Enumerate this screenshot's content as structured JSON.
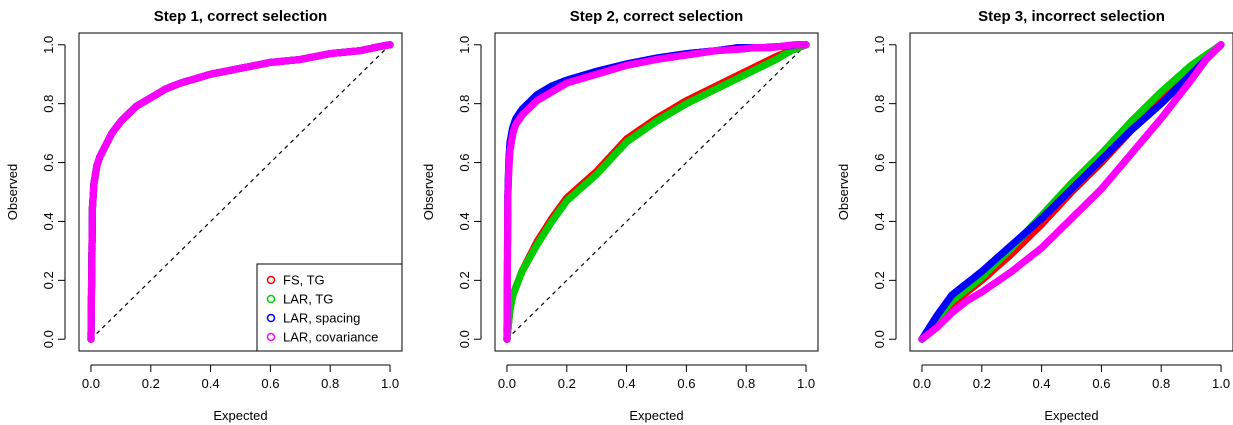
{
  "chart_data": [
    {
      "type": "scatter",
      "title": "Step 1, correct selection",
      "xlabel": "Expected",
      "ylabel": "Observed",
      "xlim": [
        0,
        1
      ],
      "ylim": [
        0,
        1
      ],
      "xticks": [
        "0.0",
        "0.2",
        "0.4",
        "0.6",
        "0.8",
        "1.0"
      ],
      "yticks": [
        "0.0",
        "0.2",
        "0.4",
        "0.6",
        "0.8",
        "1.0"
      ],
      "reference_line": "y = x (dashed)",
      "legend": {
        "position": "bottom-right",
        "entries": [
          {
            "label": "FS, TG",
            "color": "#ff0000"
          },
          {
            "label": "LAR, TG",
            "color": "#00cd00"
          },
          {
            "label": "LAR, spacing",
            "color": "#0000ff"
          },
          {
            "label": "LAR, covariance",
            "color": "#ff00ff"
          }
        ]
      },
      "series": [
        {
          "name": "FS, TG",
          "color": "#ff0000",
          "x": [
            0,
            0.005,
            0.01,
            0.02,
            0.03,
            0.05,
            0.07,
            0.1,
            0.15,
            0.2,
            0.25,
            0.3,
            0.4,
            0.5,
            0.6,
            0.7,
            0.8,
            0.9,
            0.97,
            1.0
          ],
          "y": [
            0,
            0.45,
            0.53,
            0.59,
            0.62,
            0.66,
            0.7,
            0.74,
            0.79,
            0.82,
            0.85,
            0.87,
            0.9,
            0.92,
            0.94,
            0.95,
            0.97,
            0.98,
            0.995,
            1.0
          ]
        },
        {
          "name": "LAR, TG",
          "color": "#00cd00",
          "x": [
            0,
            0.005,
            0.01,
            0.02,
            0.03,
            0.05,
            0.07,
            0.1,
            0.15,
            0.2,
            0.25,
            0.3,
            0.4,
            0.5,
            0.6,
            0.7,
            0.8,
            0.9,
            0.97,
            1.0
          ],
          "y": [
            0,
            0.45,
            0.53,
            0.59,
            0.62,
            0.66,
            0.7,
            0.74,
            0.79,
            0.82,
            0.85,
            0.87,
            0.9,
            0.92,
            0.94,
            0.95,
            0.97,
            0.98,
            0.995,
            1.0
          ]
        },
        {
          "name": "LAR, spacing",
          "color": "#0000ff",
          "x": [
            0,
            0.005,
            0.01,
            0.02,
            0.03,
            0.05,
            0.07,
            0.1,
            0.15,
            0.2,
            0.25,
            0.3,
            0.4,
            0.5,
            0.6,
            0.7,
            0.8,
            0.9,
            0.97,
            1.0
          ],
          "y": [
            0,
            0.45,
            0.53,
            0.59,
            0.62,
            0.66,
            0.7,
            0.74,
            0.79,
            0.82,
            0.85,
            0.87,
            0.9,
            0.92,
            0.94,
            0.95,
            0.97,
            0.98,
            0.995,
            1.0
          ]
        },
        {
          "name": "LAR, covariance",
          "color": "#ff00ff",
          "x": [
            0,
            0.005,
            0.01,
            0.02,
            0.03,
            0.05,
            0.07,
            0.1,
            0.15,
            0.2,
            0.25,
            0.3,
            0.4,
            0.5,
            0.6,
            0.7,
            0.8,
            0.9,
            0.97,
            1.0
          ],
          "y": [
            0,
            0.45,
            0.53,
            0.59,
            0.62,
            0.66,
            0.7,
            0.74,
            0.79,
            0.82,
            0.85,
            0.87,
            0.9,
            0.92,
            0.94,
            0.95,
            0.97,
            0.98,
            0.995,
            1.0
          ]
        }
      ]
    },
    {
      "type": "scatter",
      "title": "Step 2, correct selection",
      "xlabel": "Expected",
      "ylabel": "Observed",
      "xlim": [
        0,
        1
      ],
      "ylim": [
        0,
        1
      ],
      "xticks": [
        "0.0",
        "0.2",
        "0.4",
        "0.6",
        "0.8",
        "1.0"
      ],
      "yticks": [
        "0.0",
        "0.2",
        "0.4",
        "0.6",
        "0.8",
        "1.0"
      ],
      "reference_line": "y = x (dashed)",
      "series": [
        {
          "name": "FS, TG",
          "color": "#ff0000",
          "x": [
            0,
            0.01,
            0.02,
            0.05,
            0.1,
            0.15,
            0.2,
            0.3,
            0.4,
            0.5,
            0.6,
            0.7,
            0.8,
            0.9,
            0.95,
            1.0
          ],
          "y": [
            0,
            0.1,
            0.15,
            0.23,
            0.33,
            0.41,
            0.48,
            0.57,
            0.68,
            0.75,
            0.81,
            0.86,
            0.91,
            0.96,
            0.98,
            1.0
          ]
        },
        {
          "name": "LAR, TG",
          "color": "#00cd00",
          "x": [
            0,
            0.01,
            0.02,
            0.05,
            0.1,
            0.15,
            0.2,
            0.3,
            0.4,
            0.5,
            0.6,
            0.7,
            0.8,
            0.9,
            0.95,
            1.0
          ],
          "y": [
            0,
            0.1,
            0.15,
            0.23,
            0.32,
            0.4,
            0.47,
            0.56,
            0.67,
            0.74,
            0.8,
            0.85,
            0.9,
            0.95,
            0.98,
            1.0
          ]
        },
        {
          "name": "LAR, spacing",
          "color": "#0000ff",
          "x": [
            0,
            0.003,
            0.006,
            0.01,
            0.02,
            0.03,
            0.05,
            0.08,
            0.1,
            0.15,
            0.2,
            0.3,
            0.4,
            0.5,
            0.6,
            0.7,
            0.77,
            0.85,
            0.93,
            0.97,
            1.0
          ],
          "y": [
            0,
            0.5,
            0.6,
            0.67,
            0.72,
            0.75,
            0.78,
            0.81,
            0.83,
            0.86,
            0.88,
            0.91,
            0.935,
            0.955,
            0.97,
            0.98,
            0.99,
            0.99,
            0.995,
            1.0,
            1.0
          ]
        },
        {
          "name": "LAR, covariance",
          "color": "#ff00ff",
          "x": [
            0,
            0.003,
            0.006,
            0.01,
            0.02,
            0.03,
            0.05,
            0.08,
            0.1,
            0.15,
            0.2,
            0.3,
            0.4,
            0.5,
            0.6,
            0.7,
            0.78,
            0.83,
            0.88,
            0.96,
            1.0
          ],
          "y": [
            0,
            0.48,
            0.57,
            0.64,
            0.7,
            0.73,
            0.76,
            0.79,
            0.81,
            0.84,
            0.87,
            0.9,
            0.93,
            0.95,
            0.965,
            0.98,
            0.985,
            0.99,
            0.99,
            1.0,
            1.0
          ]
        }
      ]
    },
    {
      "type": "scatter",
      "title": "Step 3, incorrect selection",
      "xlabel": "Expected",
      "ylabel": "Observed",
      "xlim": [
        0,
        1
      ],
      "ylim": [
        0,
        1
      ],
      "xticks": [
        "0.0",
        "0.2",
        "0.4",
        "0.6",
        "0.8",
        "1.0"
      ],
      "yticks": [
        "0.0",
        "0.2",
        "0.4",
        "0.6",
        "0.8",
        "1.0"
      ],
      "series": [
        {
          "name": "FS, TG",
          "color": "#ff0000",
          "x": [
            0,
            0.05,
            0.1,
            0.2,
            0.3,
            0.4,
            0.5,
            0.6,
            0.7,
            0.8,
            0.9,
            1.0
          ],
          "y": [
            0,
            0.06,
            0.12,
            0.2,
            0.29,
            0.39,
            0.5,
            0.6,
            0.71,
            0.81,
            0.91,
            1.0
          ]
        },
        {
          "name": "LAR, TG",
          "color": "#00cd00",
          "x": [
            0,
            0.05,
            0.1,
            0.2,
            0.3,
            0.4,
            0.5,
            0.6,
            0.7,
            0.8,
            0.9,
            1.0
          ],
          "y": [
            0,
            0.07,
            0.13,
            0.21,
            0.31,
            0.42,
            0.53,
            0.63,
            0.74,
            0.84,
            0.93,
            1.0
          ]
        },
        {
          "name": "LAR, spacing",
          "color": "#0000ff",
          "x": [
            0,
            0.05,
            0.1,
            0.2,
            0.3,
            0.4,
            0.5,
            0.6,
            0.7,
            0.8,
            0.9,
            1.0
          ],
          "y": [
            0,
            0.08,
            0.15,
            0.23,
            0.32,
            0.41,
            0.51,
            0.61,
            0.71,
            0.8,
            0.9,
            1.0
          ]
        },
        {
          "name": "LAR, covariance",
          "color": "#ff00ff",
          "x": [
            0,
            0.05,
            0.1,
            0.15,
            0.2,
            0.3,
            0.4,
            0.5,
            0.6,
            0.7,
            0.8,
            0.9,
            0.95,
            1.0
          ],
          "y": [
            0,
            0.04,
            0.09,
            0.13,
            0.16,
            0.23,
            0.31,
            0.41,
            0.51,
            0.63,
            0.75,
            0.88,
            0.95,
            1.0
          ]
        }
      ]
    }
  ]
}
